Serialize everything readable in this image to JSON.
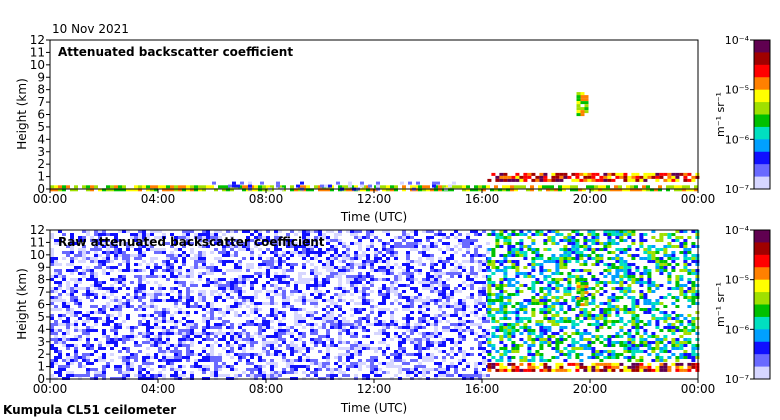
{
  "date_label": "10 Nov 2021",
  "site_label": "Kumpula CL51 ceilometer",
  "colors": {
    "frame": "#000000",
    "background": "#ffffff",
    "noise_blue": "#1a2fe0"
  },
  "colormap": [
    "#ffffff",
    "#d6d6ff",
    "#6a6aff",
    "#1010ff",
    "#00a0ff",
    "#00e0c0",
    "#00c000",
    "#a0e000",
    "#ffff00",
    "#ff8000",
    "#ff0000",
    "#a00000",
    "#600050"
  ],
  "chart_data": [
    {
      "type": "heatmap",
      "title": "Attenuated backscatter coefficient",
      "xlabel": "Time (UTC)",
      "ylabel": "Height (km)",
      "xlim": [
        "00:00",
        "24:00"
      ],
      "ylim": [
        0,
        12
      ],
      "x_ticks": [
        "00:00",
        "04:00",
        "08:00",
        "12:00",
        "16:00",
        "20:00",
        "00:00"
      ],
      "y_ticks": [
        "0",
        "1",
        "2",
        "3",
        "4",
        "5",
        "6",
        "7",
        "8",
        "9",
        "10",
        "11",
        "12"
      ],
      "colorbar": {
        "scale": "log",
        "unit": "m⁻¹ sr⁻¹",
        "tick_labels": [
          "10⁻⁴",
          "10⁻⁵",
          "10⁻⁶",
          "10⁻⁷"
        ],
        "range": [
          1e-07,
          0.0001
        ]
      },
      "features": [
        {
          "name": "surface layer",
          "hours": [
            0,
            24
          ],
          "height_km": [
            0,
            0.3
          ],
          "level": "high"
        },
        {
          "name": "low cloud",
          "hours": [
            16.2,
            24
          ],
          "height_km": [
            0.7,
            1.3
          ],
          "level": "very high"
        },
        {
          "name": "mid cloud",
          "hours": [
            19.5,
            19.9
          ],
          "height_km": [
            6.0,
            7.8
          ],
          "level": "high"
        },
        {
          "name": "aerosol layer",
          "hours": [
            6,
            15
          ],
          "height_km": [
            0,
            0.6
          ],
          "level": "low"
        }
      ]
    },
    {
      "type": "heatmap",
      "title": "Raw attenuated backscatter coefficient",
      "xlabel": "Time (UTC)",
      "ylabel": "Height (km)",
      "xlim": [
        "00:00",
        "24:00"
      ],
      "ylim": [
        0,
        12
      ],
      "x_ticks": [
        "00:00",
        "04:00",
        "08:00",
        "12:00",
        "16:00",
        "20:00",
        "00:00"
      ],
      "y_ticks": [
        "0",
        "1",
        "2",
        "3",
        "4",
        "5",
        "6",
        "7",
        "8",
        "9",
        "10",
        "11",
        "12"
      ],
      "colorbar": {
        "scale": "log",
        "unit": "m⁻¹ sr⁻¹",
        "tick_labels": [
          "10⁻⁴",
          "10⁻⁵",
          "10⁻⁶",
          "10⁻⁷"
        ],
        "range": [
          1e-07,
          0.0001
        ]
      },
      "features": [
        {
          "name": "background noise",
          "hours": [
            0,
            16.2
          ],
          "height_km": [
            0,
            12
          ],
          "level": "low"
        },
        {
          "name": "elevated noise",
          "hours": [
            16.2,
            24
          ],
          "height_km": [
            1.5,
            12
          ],
          "level": "medium"
        },
        {
          "name": "low cloud",
          "hours": [
            16.2,
            24
          ],
          "height_km": [
            0.7,
            1.3
          ],
          "level": "very high"
        },
        {
          "name": "mid cloud",
          "hours": [
            19.5,
            19.9
          ],
          "height_km": [
            6.0,
            7.8
          ],
          "level": "high"
        }
      ]
    }
  ]
}
